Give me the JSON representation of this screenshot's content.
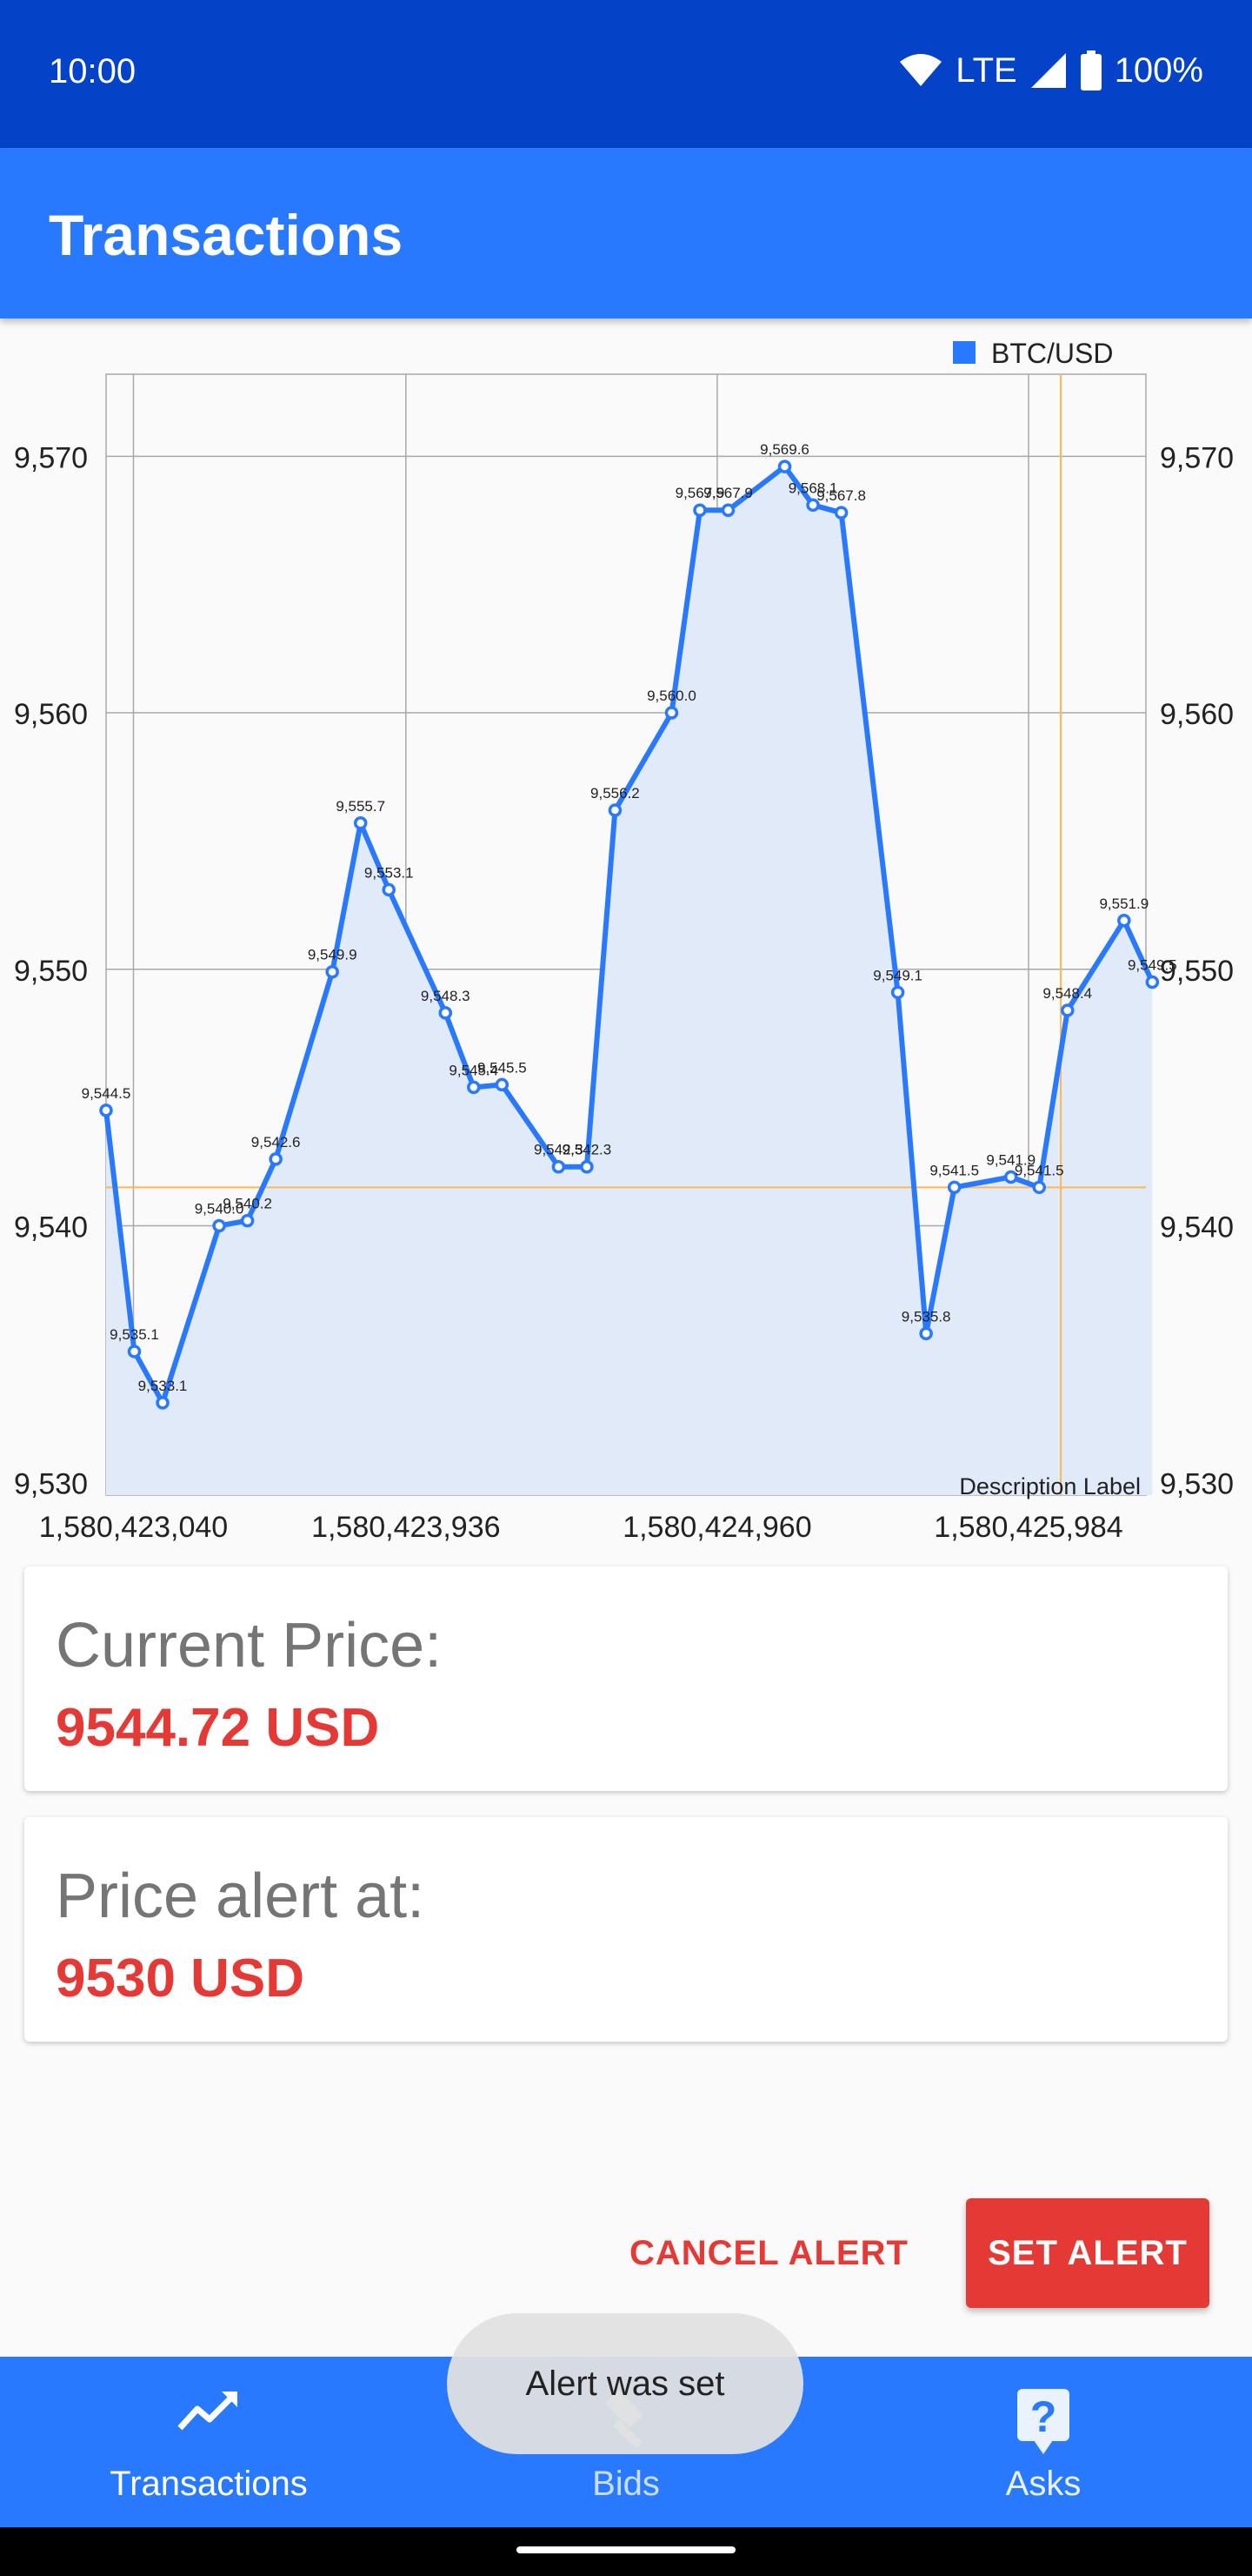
{
  "status_bar": {
    "time": "10:00",
    "network": "LTE",
    "battery": "100%"
  },
  "app_bar": {
    "title": "Transactions"
  },
  "chart_data": {
    "type": "line",
    "legend": "BTC/USD",
    "legend_position": "top-right",
    "description_label": "Description Label",
    "x_tick_labels": [
      "1,580,423,040",
      "1,580,423,936",
      "1,580,424,960",
      "1,580,425,984"
    ],
    "x_ticks": [
      1580423040,
      1580423936,
      1580424960,
      1580425984
    ],
    "y_tick_labels": [
      "9,570",
      "9,560",
      "9,550",
      "9,540",
      "9,530"
    ],
    "y_ticks": [
      9570,
      9560,
      9550,
      9540,
      9530
    ],
    "xlim": [
      1580422950,
      1580426370
    ],
    "ylim": [
      9529.5,
      9573.2
    ],
    "grid": true,
    "highlight": {
      "x": 1580426090,
      "y": 9541.5
    },
    "series": [
      {
        "name": "BTC/USD",
        "color": "#2979FF",
        "fill": "#E1EAF8",
        "points": [
          [
            1580422950,
            9544.5
          ],
          [
            1580423043,
            9535.1
          ],
          [
            1580423136,
            9533.1
          ],
          [
            1580423322,
            9540.0
          ],
          [
            1580423415,
            9540.2
          ],
          [
            1580423508,
            9542.6
          ],
          [
            1580423694,
            9549.9
          ],
          [
            1580423787,
            9555.7
          ],
          [
            1580423880,
            9553.1
          ],
          [
            1580424066,
            9548.3
          ],
          [
            1580424159,
            9545.4
          ],
          [
            1580424252,
            9545.5
          ],
          [
            1580424438,
            9542.3
          ],
          [
            1580424531,
            9542.3
          ],
          [
            1580424624,
            9556.2
          ],
          [
            1580424810,
            9560.0
          ],
          [
            1580424903,
            9567.9
          ],
          [
            1580424996,
            9567.9
          ],
          [
            1580425182,
            9569.6
          ],
          [
            1580425275,
            9568.1
          ],
          [
            1580425368,
            9567.8
          ],
          [
            1580425554,
            9549.1
          ],
          [
            1580425647,
            9535.8
          ],
          [
            1580425740,
            9541.5
          ],
          [
            1580425926,
            9541.9
          ],
          [
            1580426019,
            9541.5
          ],
          [
            1580426112,
            9548.4
          ],
          [
            1580426298,
            9551.9
          ],
          [
            1580426391,
            9549.5
          ]
        ],
        "labels": [
          "9,544.5",
          "9,535.1",
          "9,533.1",
          "9,540.0",
          "9,540.2",
          "9,542.6",
          "9,549.9",
          "9,555.7",
          "9,553.1",
          "9,548.3",
          "9,545.4",
          "9,545.5",
          "9,542.3",
          "9,542.3",
          "9,556.2",
          "9,560.0",
          "9,567.9",
          "9,567.9",
          "9,569.6",
          "9,568.1",
          "9,567.8",
          "9,549.1",
          "9,535.8",
          "9,541.5",
          "9,541.9",
          "9,541.5",
          "9,548.4",
          "9,551.9",
          "9,549.5"
        ]
      }
    ]
  },
  "current_price": {
    "label": "Current Price:",
    "value": "9544.72 USD"
  },
  "price_alert": {
    "label": "Price alert at:",
    "value": "9530 USD"
  },
  "actions": {
    "cancel_label": "CANCEL ALERT",
    "set_label": "SET ALERT"
  },
  "bottom_nav": [
    {
      "label": "Transactions",
      "icon": "trending-up-icon"
    },
    {
      "label": "Bids",
      "icon": "gavel-icon"
    },
    {
      "label": "Asks",
      "icon": "help-box-icon"
    }
  ],
  "toast": {
    "text": "Alert was set"
  }
}
